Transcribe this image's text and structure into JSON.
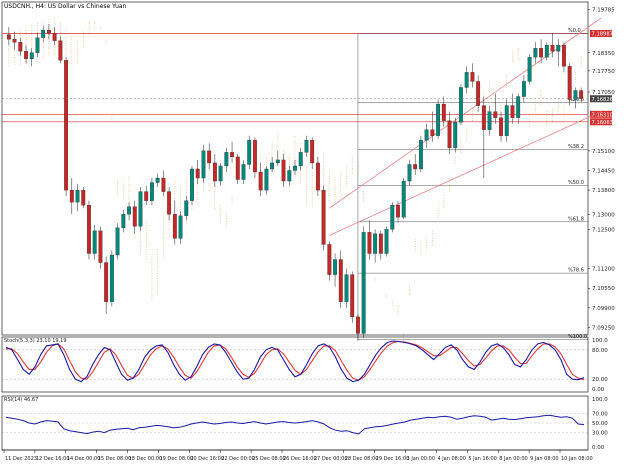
{
  "header": {
    "symbol_title": "USDCNH., H4:  US Dollar vs Chinese Yuan"
  },
  "panels": {
    "stoch": {
      "label": "Stoch(5,3,3) 23.10 19.19",
      "levels": [
        "100.0",
        "80.00",
        "20.00",
        "0.00"
      ]
    },
    "rsi": {
      "label": "RSI(14) 46.67",
      "levels": [
        "100.0",
        "70.00",
        "50.00",
        "30.00",
        "0.00"
      ]
    }
  },
  "colors": {
    "bull": "#00897b",
    "bear": "#c62828",
    "level_red": "#d32f2f",
    "channel": "#e57373",
    "cloud": "#f4a460",
    "stoch_main": "#1a1aa6",
    "stoch_signal": "#e53935",
    "rsi_line": "#1a1aa6",
    "fib_gray": "#555555",
    "tag_bg": "#d32f2f",
    "tag_dark": "#444444"
  },
  "chart_data": {
    "type": "candlestick",
    "title": "USDCNH., H4: US Dollar vs Chinese Yuan",
    "y_range": [
      7.09,
      7.197
    ],
    "y_ticks": [
      "7.19785",
      "7.18690",
      "7.18350",
      "7.17750",
      "7.17050",
      "7.16826",
      "7.16310",
      "7.16063",
      "7.15100",
      "7.14450",
      "7.13800",
      "7.13000",
      "7.12500",
      "7.11200",
      "7.10550",
      "7.09900",
      "7.09250"
    ],
    "x_ticks": [
      "11 Dec 2023",
      "12 Dec 16:00",
      "14 Dec 00:00",
      "15 Dec 08:00",
      "18 Dec 00:00",
      "19 Dec 08:00",
      "20 Dec 16:00",
      "22 Dec 00:00",
      "25 Dec 08:00",
      "26 Dec 16:00",
      "27 Dec 00:00",
      "28 Dec 08:00",
      "29 Dec 16:00",
      "3 Jan 00:00",
      "4 Jan 08:00",
      "5 Jan 16:00",
      "8 Jan 00:00",
      "9 Jan 08:00",
      "10 Jan 08:00"
    ],
    "current_price": 7.16826,
    "levels": [
      {
        "label": "7.18987",
        "value": 7.18987
      },
      {
        "label": "7.16310",
        "value": 7.1631
      },
      {
        "label": "7.16063",
        "value": 7.16063
      }
    ],
    "fibonacci": [
      {
        "label": "%0.0",
        "value": 7.18987
      },
      {
        "label": "%23.6",
        "value": 7.167
      },
      {
        "label": "%38.2",
        "value": 7.1515
      },
      {
        "label": "%50.0",
        "value": 7.1395
      },
      {
        "label": "%61.8",
        "value": 7.1275
      },
      {
        "label": "%78.6",
        "value": 7.1105
      },
      {
        "label": "%100.0",
        "value": 7.0885
      }
    ],
    "candles": [
      [
        7.1895,
        7.192,
        7.186,
        7.188
      ],
      [
        7.188,
        7.1905,
        7.1845,
        7.187
      ],
      [
        7.187,
        7.1885,
        7.1825,
        7.184
      ],
      [
        7.184,
        7.186,
        7.18,
        7.1815
      ],
      [
        7.1815,
        7.185,
        7.179,
        7.1835
      ],
      [
        7.1835,
        7.19,
        7.182,
        7.1885
      ],
      [
        7.1885,
        7.1925,
        7.187,
        7.191
      ],
      [
        7.191,
        7.193,
        7.188,
        7.19
      ],
      [
        7.19,
        7.192,
        7.186,
        7.1875
      ],
      [
        7.1875,
        7.189,
        7.18,
        7.181
      ],
      [
        7.181,
        7.182,
        7.136,
        7.138
      ],
      [
        7.138,
        7.142,
        7.13,
        7.134
      ],
      [
        7.134,
        7.14,
        7.131,
        7.138
      ],
      [
        7.138,
        7.139,
        7.132,
        7.133
      ],
      [
        7.133,
        7.1345,
        7.115,
        7.117
      ],
      [
        7.117,
        7.1265,
        7.115,
        7.1245
      ],
      [
        7.1245,
        7.126,
        7.112,
        7.114
      ],
      [
        7.114,
        7.116,
        7.097,
        7.101
      ],
      [
        7.101,
        7.118,
        7.0995,
        7.1165
      ],
      [
        7.1165,
        7.127,
        7.115,
        7.1255
      ],
      [
        7.1255,
        7.1315,
        7.124,
        7.13
      ],
      [
        7.13,
        7.134,
        7.128,
        7.1325
      ],
      [
        7.1325,
        7.1345,
        7.1235,
        7.126
      ],
      [
        7.126,
        7.139,
        7.1245,
        7.1375
      ],
      [
        7.1375,
        7.1395,
        7.133,
        7.1345
      ],
      [
        7.1345,
        7.142,
        7.133,
        7.1405
      ],
      [
        7.1405,
        7.1435,
        7.139,
        7.142
      ],
      [
        7.142,
        7.1445,
        7.136,
        7.1375
      ],
      [
        7.1375,
        7.139,
        7.128,
        7.13
      ],
      [
        7.13,
        7.1345,
        7.12,
        7.122
      ],
      [
        7.122,
        7.131,
        7.12,
        7.1295
      ],
      [
        7.1295,
        7.136,
        7.128,
        7.1345
      ],
      [
        7.1345,
        7.146,
        7.133,
        7.145
      ],
      [
        7.145,
        7.148,
        7.14,
        7.142
      ],
      [
        7.142,
        7.153,
        7.1405,
        7.151
      ],
      [
        7.151,
        7.1535,
        7.145,
        7.147
      ],
      [
        7.147,
        7.15,
        7.139,
        7.141
      ],
      [
        7.141,
        7.147,
        7.1395,
        7.146
      ],
      [
        7.146,
        7.152,
        7.144,
        7.1505
      ],
      [
        7.1505,
        7.154,
        7.147,
        7.149
      ],
      [
        7.149,
        7.15,
        7.14,
        7.1415
      ],
      [
        7.1415,
        7.148,
        7.14,
        7.1465
      ],
      [
        7.1465,
        7.156,
        7.145,
        7.1545
      ],
      [
        7.1545,
        7.1555,
        7.142,
        7.144
      ],
      [
        7.144,
        7.147,
        7.136,
        7.138
      ],
      [
        7.138,
        7.146,
        7.1365,
        7.145
      ],
      [
        7.145,
        7.149,
        7.144,
        7.147
      ],
      [
        7.147,
        7.151,
        7.146,
        7.148
      ],
      [
        7.148,
        7.15,
        7.139,
        7.141
      ],
      [
        7.141,
        7.146,
        7.1395,
        7.1445
      ],
      [
        7.1445,
        7.148,
        7.143,
        7.146
      ],
      [
        7.146,
        7.152,
        7.1445,
        7.1505
      ],
      [
        7.1505,
        7.156,
        7.149,
        7.1545
      ],
      [
        7.1545,
        7.1555,
        7.145,
        7.147
      ],
      [
        7.147,
        7.149,
        7.136,
        7.138
      ],
      [
        7.138,
        7.1395,
        7.118,
        7.12
      ],
      [
        7.12,
        7.121,
        7.108,
        7.11
      ],
      [
        7.11,
        7.117,
        7.106,
        7.115
      ],
      [
        7.115,
        7.118,
        7.099,
        7.101
      ],
      [
        7.101,
        7.112,
        7.099,
        7.11
      ],
      [
        7.11,
        7.111,
        7.094,
        7.096
      ],
      [
        7.096,
        7.097,
        7.088,
        7.0905
      ],
      [
        7.0905,
        7.126,
        7.089,
        7.124
      ],
      [
        7.124,
        7.128,
        7.115,
        7.117
      ],
      [
        7.117,
        7.125,
        7.114,
        7.1235
      ],
      [
        7.1235,
        7.1245,
        7.115,
        7.117
      ],
      [
        7.117,
        7.126,
        7.116,
        7.125
      ],
      [
        7.125,
        7.134,
        7.124,
        7.133
      ],
      [
        7.133,
        7.1345,
        7.127,
        7.129
      ],
      [
        7.129,
        7.142,
        7.1285,
        7.141
      ],
      [
        7.141,
        7.148,
        7.1395,
        7.1465
      ],
      [
        7.1465,
        7.15,
        7.143,
        7.145
      ],
      [
        7.145,
        7.156,
        7.144,
        7.1545
      ],
      [
        7.1545,
        7.16,
        7.152,
        7.158
      ],
      [
        7.158,
        7.164,
        7.154,
        7.156
      ],
      [
        7.156,
        7.168,
        7.155,
        7.1665
      ],
      [
        7.1665,
        7.169,
        7.159,
        7.161
      ],
      [
        7.161,
        7.164,
        7.15,
        7.152
      ],
      [
        7.152,
        7.162,
        7.1505,
        7.1605
      ],
      [
        7.1605,
        7.173,
        7.1595,
        7.172
      ],
      [
        7.172,
        7.179,
        7.17,
        7.177
      ],
      [
        7.177,
        7.18,
        7.172,
        7.174
      ],
      [
        7.174,
        7.176,
        7.164,
        7.166
      ],
      [
        7.166,
        7.169,
        7.142,
        7.158
      ],
      [
        7.158,
        7.166,
        7.156,
        7.164
      ],
      [
        7.164,
        7.17,
        7.16,
        7.162
      ],
      [
        7.162,
        7.164,
        7.154,
        7.156
      ],
      [
        7.156,
        7.168,
        7.154,
        7.166
      ],
      [
        7.166,
        7.17,
        7.16,
        7.162
      ],
      [
        7.162,
        7.17,
        7.16,
        7.169
      ],
      [
        7.169,
        7.176,
        7.167,
        7.174
      ],
      [
        7.174,
        7.183,
        7.173,
        7.182
      ],
      [
        7.182,
        7.187,
        7.18,
        7.185
      ],
      [
        7.185,
        7.188,
        7.18,
        7.182
      ],
      [
        7.182,
        7.187,
        7.181,
        7.186
      ],
      [
        7.186,
        7.19,
        7.182,
        7.184
      ],
      [
        7.184,
        7.188,
        7.179,
        7.186
      ],
      [
        7.186,
        7.187,
        7.177,
        7.179
      ],
      [
        7.179,
        7.18,
        7.166,
        7.168
      ],
      [
        7.168,
        7.172,
        7.165,
        7.171
      ],
      [
        7.171,
        7.172,
        7.167,
        7.1683
      ]
    ],
    "stochastic": {
      "name": "Stoch(5,3,3)",
      "main": [
        85,
        80,
        60,
        40,
        30,
        45,
        70,
        88,
        90,
        92,
        70,
        40,
        20,
        15,
        25,
        50,
        70,
        85,
        80,
        55,
        30,
        18,
        22,
        40,
        65,
        80,
        88,
        90,
        75,
        50,
        30,
        18,
        25,
        45,
        70,
        85,
        92,
        90,
        75,
        55,
        35,
        20,
        22,
        40,
        65,
        80,
        85,
        80,
        60,
        40,
        25,
        30,
        50,
        72,
        88,
        92,
        85,
        65,
        40,
        22,
        15,
        18,
        30,
        50,
        70,
        85,
        95,
        98,
        97,
        95,
        92,
        88,
        80,
        70,
        60,
        72,
        85,
        90,
        80,
        60,
        45,
        40,
        55,
        75,
        88,
        92,
        85,
        70,
        50,
        45,
        60,
        80,
        92,
        95,
        90,
        80,
        60,
        30,
        20,
        19,
        23
      ],
      "signal": [
        82,
        82,
        72,
        55,
        40,
        40,
        55,
        75,
        88,
        92,
        82,
        58,
        35,
        22,
        20,
        35,
        55,
        75,
        82,
        70,
        48,
        28,
        22,
        30,
        50,
        70,
        82,
        88,
        82,
        65,
        45,
        28,
        22,
        35,
        55,
        75,
        88,
        90,
        82,
        65,
        45,
        30,
        24,
        32,
        50,
        70,
        80,
        82,
        72,
        55,
        38,
        30,
        40,
        58,
        76,
        88,
        88,
        78,
        58,
        38,
        22,
        18,
        25,
        40,
        58,
        75,
        88,
        95,
        97,
        96,
        93,
        90,
        84,
        76,
        68,
        68,
        76,
        85,
        85,
        72,
        58,
        47,
        50,
        63,
        78,
        88,
        88,
        80,
        65,
        52,
        52,
        68,
        82,
        92,
        92,
        86,
        72,
        50,
        30,
        22,
        19
      ]
    },
    "rsi": {
      "name": "RSI(14)",
      "values": [
        62,
        60,
        58,
        55,
        50,
        48,
        52,
        55,
        54,
        52,
        38,
        34,
        32,
        30,
        28,
        31,
        33,
        30,
        35,
        37,
        38,
        39,
        36,
        40,
        41,
        43,
        45,
        44,
        42,
        40,
        41,
        44,
        48,
        50,
        52,
        50,
        48,
        49,
        51,
        52,
        50,
        49,
        51,
        53,
        50,
        48,
        50,
        52,
        53,
        51,
        50,
        51,
        53,
        55,
        52,
        48,
        40,
        35,
        33,
        34,
        30,
        27,
        38,
        40,
        42,
        43,
        45,
        48,
        50,
        52,
        56,
        58,
        60,
        62,
        61,
        63,
        64,
        62,
        58,
        60,
        63,
        65,
        64,
        62,
        56,
        58,
        60,
        58,
        57,
        59,
        61,
        62,
        63,
        65,
        66,
        64,
        62,
        63,
        60,
        48,
        46.67
      ]
    }
  }
}
